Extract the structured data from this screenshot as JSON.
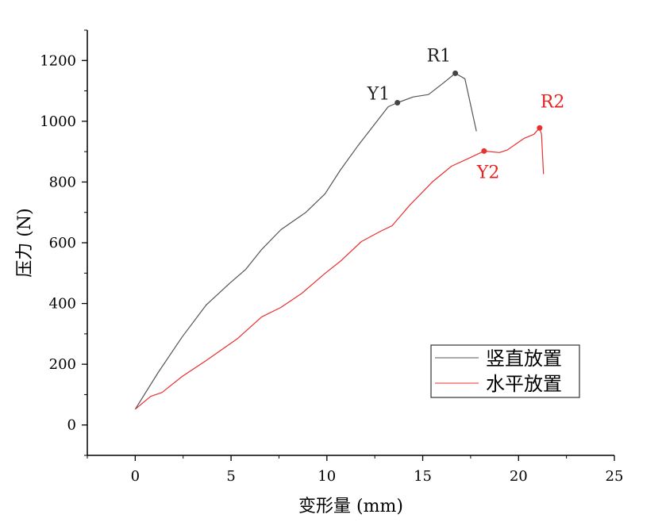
{
  "chart_data": {
    "type": "line",
    "xlabel": "变形量 (mm)",
    "ylabel": "压力 (N)",
    "xlim": [
      -2.5,
      25
    ],
    "ylim": [
      -100,
      1300
    ],
    "xticks": [
      0,
      5,
      10,
      15,
      20,
      25
    ],
    "yticks": [
      0,
      200,
      400,
      600,
      800,
      1000,
      1200
    ],
    "grid": false,
    "legend_position": "bottom-right",
    "series": [
      {
        "name": "竖直放置",
        "color": "#555555",
        "points": [
          [
            0,
            52
          ],
          [
            1.2,
            173
          ],
          [
            2.45,
            290
          ],
          [
            3.7,
            395
          ],
          [
            4.9,
            465
          ],
          [
            5.76,
            512
          ],
          [
            6.6,
            578
          ],
          [
            7.6,
            643
          ],
          [
            8.9,
            700
          ],
          [
            9.9,
            761
          ],
          [
            10.7,
            839
          ],
          [
            11.6,
            918
          ],
          [
            12.4,
            983
          ],
          [
            13.2,
            1048
          ],
          [
            13.68,
            1061
          ],
          [
            14.5,
            1080
          ],
          [
            15.3,
            1088
          ],
          [
            16.1,
            1127
          ],
          [
            16.7,
            1158
          ],
          [
            17.2,
            1140
          ],
          [
            17.8,
            967
          ]
        ]
      },
      {
        "name": "水平放置",
        "color": "#e83030",
        "points": [
          [
            0,
            52
          ],
          [
            0.8,
            94
          ],
          [
            1.4,
            107
          ],
          [
            2.45,
            160
          ],
          [
            3.7,
            212
          ],
          [
            5.35,
            285
          ],
          [
            6.6,
            356
          ],
          [
            7.6,
            387
          ],
          [
            8.7,
            434
          ],
          [
            9.9,
            499
          ],
          [
            10.7,
            539
          ],
          [
            11.8,
            604
          ],
          [
            12.8,
            638
          ],
          [
            13.4,
            656
          ],
          [
            14.3,
            722
          ],
          [
            15.5,
            800
          ],
          [
            16.5,
            852
          ],
          [
            17.4,
            878
          ],
          [
            18.2,
            902
          ],
          [
            19.0,
            897
          ],
          [
            19.4,
            905
          ],
          [
            20.3,
            944
          ],
          [
            20.8,
            957
          ],
          [
            21.1,
            978
          ],
          [
            21.2,
            957
          ],
          [
            21.3,
            826
          ]
        ]
      }
    ],
    "annotations": [
      {
        "label": "Y1",
        "x": 13.68,
        "y": 1061,
        "color": "#222222",
        "dot": "#444444",
        "dx": -38,
        "dy": -4
      },
      {
        "label": "R1",
        "x": 16.7,
        "y": 1158,
        "color": "#222222",
        "dot": "#444444",
        "dx": -36,
        "dy": -15
      },
      {
        "label": "Y2",
        "x": 18.2,
        "y": 902,
        "color": "#e82020",
        "dot": "#e83030",
        "dx": -9,
        "dy": 34
      },
      {
        "label": "R2",
        "x": 21.1,
        "y": 978,
        "color": "#e82020",
        "dot": "#e83030",
        "dx": 1,
        "dy": -26
      }
    ]
  }
}
